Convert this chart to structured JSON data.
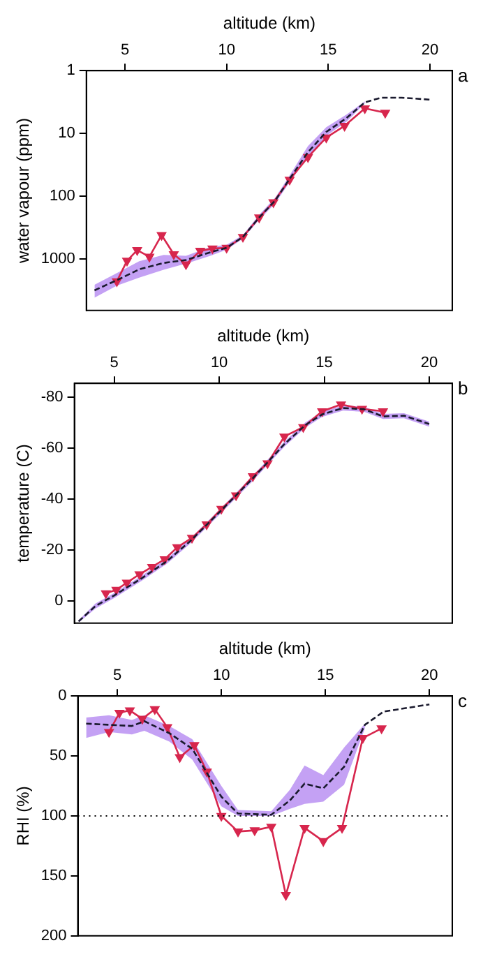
{
  "chart_data": [
    {
      "type": "line",
      "annotations": [
        "a"
      ],
      "xlabel": "altitude (km)",
      "ylabel": "water vapour (ppm)",
      "log": "y",
      "xlim": [
        3.1,
        21.1
      ],
      "xticks": [
        5,
        10,
        15,
        20
      ],
      "ylim": [
        6700,
        1
      ],
      "yticks": [
        1,
        10,
        100,
        1000
      ],
      "grid": false,
      "series": [
        {
          "color": "#d7264d",
          "marker": "triangle",
          "line_style": "solid",
          "x": [
            4.6,
            5.1,
            5.6,
            6.2,
            6.8,
            7.4,
            8.0,
            8.7,
            9.3,
            10.0,
            10.8,
            11.6,
            12.3,
            13.1,
            14.0,
            14.9,
            15.8,
            16.8,
            17.8
          ],
          "values": [
            2300,
            1080,
            730,
            930,
            420,
            850,
            1230,
            750,
            690,
            670,
            450,
            220,
            126,
            55,
            24,
            11.7,
            7.6,
            4.0,
            4.7
          ]
        },
        {
          "color": "#1a1a2e",
          "marker": "none",
          "line_style": "dashed",
          "x": [
            3.5,
            4.6,
            5.7,
            6.9,
            8.0,
            9.2,
            10.0,
            10.8,
            11.6,
            12.4,
            13.1,
            14.0,
            14.9,
            15.9,
            16.8,
            17.6,
            18.6,
            20.0
          ],
          "values": [
            3200,
            2200,
            1480,
            1170,
            1050,
            790,
            670,
            450,
            220,
            117,
            53,
            20,
            9.5,
            5.7,
            3.2,
            2.7,
            2.7,
            2.9
          ],
          "lower": [
            2600,
            1700,
            1100,
            870,
            900,
            650,
            600,
            420,
            200,
            105,
            47,
            16,
            8,
            5,
            3.1,
            null,
            null,
            null
          ],
          "upper": [
            4200,
            2700,
            2000,
            1500,
            1200,
            900,
            720,
            480,
            240,
            130,
            60,
            24,
            11,
            6.5,
            3.3,
            null,
            null,
            null
          ]
        }
      ]
    },
    {
      "type": "line",
      "annotations": [
        "b"
      ],
      "xlabel": "altitude (km)",
      "ylabel": "temperature (C)",
      "xlim": [
        3.1,
        21.1
      ],
      "xticks": [
        5,
        10,
        15,
        20
      ],
      "ylim": [
        8.7,
        -85.5
      ],
      "yticks": [
        -80,
        -60,
        -40,
        -20,
        0
      ],
      "grid": false,
      "series": [
        {
          "color": "#d7264d",
          "marker": "triangle",
          "line_style": "solid",
          "x": [
            4.6,
            5.1,
            5.6,
            6.2,
            6.8,
            7.4,
            8.0,
            8.7,
            9.4,
            10.1,
            10.8,
            11.6,
            12.3,
            13.1,
            14.0,
            14.9,
            15.8,
            16.8,
            17.8
          ],
          "values": [
            -3.0,
            -4.4,
            -7.2,
            -10.5,
            -13.4,
            -16.4,
            -21.1,
            -24.8,
            -30.1,
            -36.2,
            -41.5,
            -49.0,
            -54.1,
            -64.6,
            -68.3,
            -74.5,
            -77.2,
            -75.5,
            -74.5
          ]
        },
        {
          "color": "#1a1a2e",
          "marker": "none",
          "line_style": "dashed",
          "x": [
            3.3,
            4.1,
            5.0,
            6.3,
            7.5,
            8.6,
            10.0,
            11.6,
            13.1,
            14.1,
            14.9,
            15.9,
            16.9,
            17.8,
            18.8,
            20.0
          ],
          "values": [
            8.0,
            2.0,
            -2.2,
            -8.9,
            -15.6,
            -23.4,
            -34.8,
            -48.2,
            -61.6,
            -69.1,
            -73.3,
            -75.8,
            -75.3,
            -72.5,
            -72.8,
            -69.5
          ],
          "lower": [
            7.5,
            1.0,
            -3.2,
            -9.9,
            -16.6,
            -24.4,
            -35.8,
            -49.2,
            -62.6,
            -70.1,
            -74.3,
            -76.8,
            -76.3,
            -73.5,
            -73.8,
            -70.5
          ],
          "upper": [
            8.5,
            3.0,
            -1.2,
            -7.9,
            -14.6,
            -22.4,
            -33.8,
            -47.2,
            -60.6,
            -68.1,
            -72.3,
            -74.8,
            -74.3,
            -71.5,
            -71.8,
            -68.5
          ]
        }
      ]
    },
    {
      "type": "line",
      "annotations": [
        "c"
      ],
      "xlabel": "altitude (km)",
      "ylabel": "RHI (%)",
      "xlim": [
        3.1,
        21.1
      ],
      "xticks": [
        5,
        10,
        15,
        20
      ],
      "ylim": [
        200,
        0
      ],
      "yticks": [
        0,
        50,
        100,
        150,
        200
      ],
      "grid": false,
      "ref_lines": [
        {
          "axis": "y",
          "value": 100,
          "line_style": "dotted",
          "color": "#000000"
        }
      ],
      "series": [
        {
          "color": "#d7264d",
          "marker": "triangle",
          "line_style": "solid",
          "x": [
            4.6,
            5.1,
            5.6,
            6.2,
            6.8,
            7.4,
            8.0,
            8.7,
            9.3,
            10.0,
            10.8,
            11.6,
            12.4,
            13.1,
            14.0,
            14.9,
            15.8,
            16.8,
            17.7
          ],
          "values": [
            30,
            14,
            12,
            19,
            11,
            26,
            51,
            41,
            63,
            100,
            113,
            112,
            109,
            166,
            110,
            121,
            110,
            35,
            27
          ]
        },
        {
          "color": "#1a1a2e",
          "marker": "none",
          "line_style": "dashed",
          "x": [
            3.5,
            4.6,
            5.7,
            6.3,
            7.5,
            8.6,
            10.0,
            10.8,
            12.4,
            13.3,
            14.0,
            14.9,
            15.9,
            16.9,
            17.8,
            20.0
          ],
          "values": [
            23,
            24,
            25,
            21,
            31,
            44,
            84,
            98,
            99,
            87,
            73,
            77,
            59,
            24,
            13,
            7
          ],
          "lower": [
            18,
            16,
            20,
            16,
            25,
            36,
            75,
            95,
            96,
            78,
            58,
            66,
            43,
            23,
            null,
            null
          ],
          "upper": [
            35,
            30,
            32,
            29,
            38,
            53,
            92,
            100,
            100,
            94,
            90,
            88,
            74,
            27,
            null,
            null
          ]
        }
      ]
    }
  ]
}
